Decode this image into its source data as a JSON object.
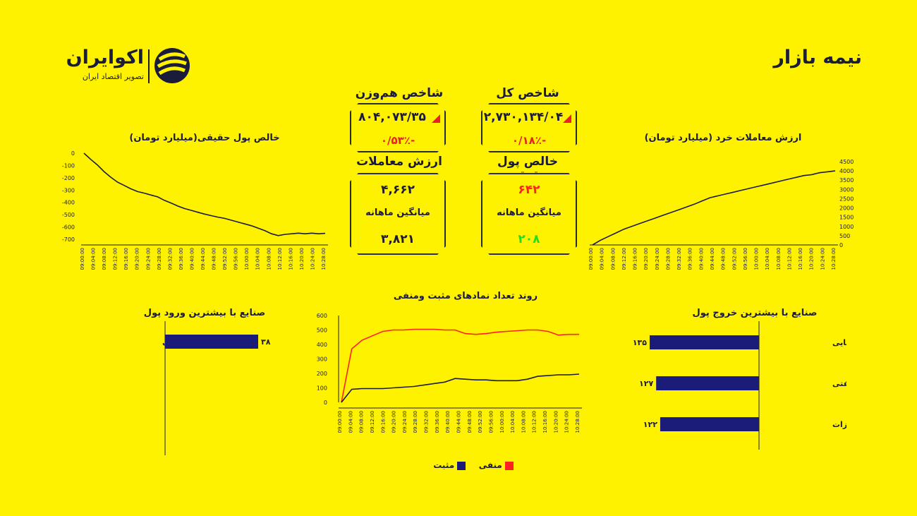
{
  "header": {
    "title": "نیمه بازار",
    "logo_name": "اکوایران",
    "logo_tagline": "تصویر اقتصاد ایران"
  },
  "cards": {
    "total_index": {
      "title": "شاخص کل",
      "value": "۲,۷۳۰,۱۳۴/۰۴",
      "change": "-۰/۱۸٪"
    },
    "equal_index": {
      "title": "شاخص هم‌وزن",
      "value": "۸۰۴,۰۷۳/۳۵",
      "change": "-۰/۵۳٪"
    },
    "net_money": {
      "title": "خالص پول حقیقی",
      "value": "۶۴۲",
      "avg_label": "میانگین ماهانه",
      "avg_value": "۲۰۸"
    },
    "trade_value": {
      "title": "ارزش معاملات",
      "value": "۴,۶۶۲",
      "avg_label": "میانگین ماهانه",
      "avg_value": "۳,۸۲۱"
    }
  },
  "colors": {
    "background": "#fff200",
    "navy": "#1b1b7a",
    "red": "#ff2020",
    "green": "#22dd22",
    "text": "#1b1b3a"
  },
  "chart_data": [
    {
      "id": "net-real-money",
      "type": "line",
      "title": "خالص پول حقیقی(میلیارد تومان)",
      "ylim": [
        -700,
        0
      ],
      "y_ticks": [
        "0",
        "-100",
        "-200",
        "-300",
        "-400",
        "-500",
        "-600",
        "-700"
      ],
      "x_labels": [
        "09:00:00",
        "09:04:00",
        "09:08:00",
        "09:12:00",
        "09:16:00",
        "09:20:00",
        "09:24:00",
        "09:28:00",
        "09:32:00",
        "09:36:00",
        "09:40:00",
        "09:44:00",
        "09:48:00",
        "09:52:00",
        "09:56:00",
        "10:00:00",
        "10:04:00",
        "10:08:00",
        "10:12:00",
        "10:16:00",
        "10:20:00",
        "10:24:00",
        "10:28:00"
      ],
      "values": [
        0,
        -50,
        -95,
        -150,
        -195,
        -235,
        -262,
        -290,
        -312,
        -325,
        -340,
        -355,
        -383,
        -405,
        -430,
        -450,
        -465,
        -480,
        -495,
        -508,
        -520,
        -530,
        -545,
        -560,
        -575,
        -590,
        -610,
        -630,
        -655,
        -670,
        -660,
        -655,
        -650,
        -655,
        -650,
        -655,
        -652
      ]
    },
    {
      "id": "retail-trade-value",
      "type": "line",
      "title": "ارزش معاملات خرد (میلیارد تومان)",
      "ylim": [
        0,
        4500
      ],
      "y_ticks": [
        "4500",
        "4000",
        "3500",
        "3000",
        "2500",
        "2000",
        "1500",
        "1000",
        "500",
        "0"
      ],
      "x_labels": [
        "09:00:00",
        "09:04:00",
        "09:08:00",
        "09:12:00",
        "09:16:00",
        "09:20:00",
        "09:24:00",
        "09:28:00",
        "09:32:00",
        "09:36:00",
        "09:40:00",
        "09:44:00",
        "09:48:00",
        "09:52:00",
        "09:56:00",
        "10:00:00",
        "10:04:00",
        "10:08:00",
        "10:12:00",
        "10:16:00",
        "10:20:00",
        "10:24:00",
        "10:28:00"
      ],
      "values": [
        0,
        250,
        450,
        650,
        850,
        1000,
        1150,
        1300,
        1450,
        1600,
        1750,
        1900,
        2050,
        2200,
        2380,
        2550,
        2650,
        2750,
        2850,
        2950,
        3050,
        3150,
        3250,
        3350,
        3450,
        3550,
        3650,
        3750,
        3800,
        3900,
        3950,
        4000
      ]
    },
    {
      "id": "positive-negative-symbols",
      "type": "line",
      "title": "روند تعداد نمادهای مثبت ومنفی",
      "ylim": [
        0,
        600
      ],
      "y_ticks": [
        "600",
        "500",
        "400",
        "300",
        "200",
        "100",
        "0"
      ],
      "x_labels": [
        "09:00:00",
        "09:04:00",
        "09:08:00",
        "09:12:00",
        "09:16:00",
        "09:20:00",
        "09:24:00",
        "09:28:00",
        "09:32:00",
        "09:36:00",
        "09:40:00",
        "09:44:00",
        "09:48:00",
        "09:52:00",
        "09:56:00",
        "10:00:00",
        "10:04:00",
        "10:08:00",
        "10:12:00",
        "10:16:00",
        "10:20:00",
        "10:24:00",
        "10:28:00"
      ],
      "legend": [
        "منفی",
        "مثبت"
      ],
      "series": [
        {
          "name": "منفی",
          "color": "#ff2020",
          "values": [
            0,
            370,
            430,
            460,
            490,
            500,
            500,
            505,
            505,
            505,
            500,
            500,
            475,
            470,
            475,
            485,
            490,
            495,
            500,
            500,
            490,
            465,
            470,
            470
          ]
        },
        {
          "name": "مثبت",
          "color": "#1b1b3a",
          "values": [
            0,
            90,
            95,
            95,
            95,
            100,
            105,
            110,
            120,
            130,
            140,
            165,
            160,
            155,
            155,
            150,
            150,
            150,
            160,
            180,
            185,
            190,
            190,
            195
          ]
        }
      ]
    },
    {
      "id": "industries-outflow",
      "type": "bar",
      "title": "صنایع با بیشترین خروج پول",
      "categories": [
        "محصولات شیمیایی",
        "فراورده های نفتی",
        "فلزات"
      ],
      "values": [
        135,
        127,
        122
      ],
      "value_labels": [
        "۱۳۵",
        "۱۲۷",
        "۱۲۲"
      ],
      "orientation": "horizontal"
    },
    {
      "id": "industries-inflow",
      "type": "bar",
      "title": "صنایع با بیشترین ورود پول",
      "categories": [
        "کانه فلزی"
      ],
      "values": [
        38
      ],
      "value_labels": [
        "۳۸"
      ],
      "orientation": "horizontal"
    }
  ]
}
